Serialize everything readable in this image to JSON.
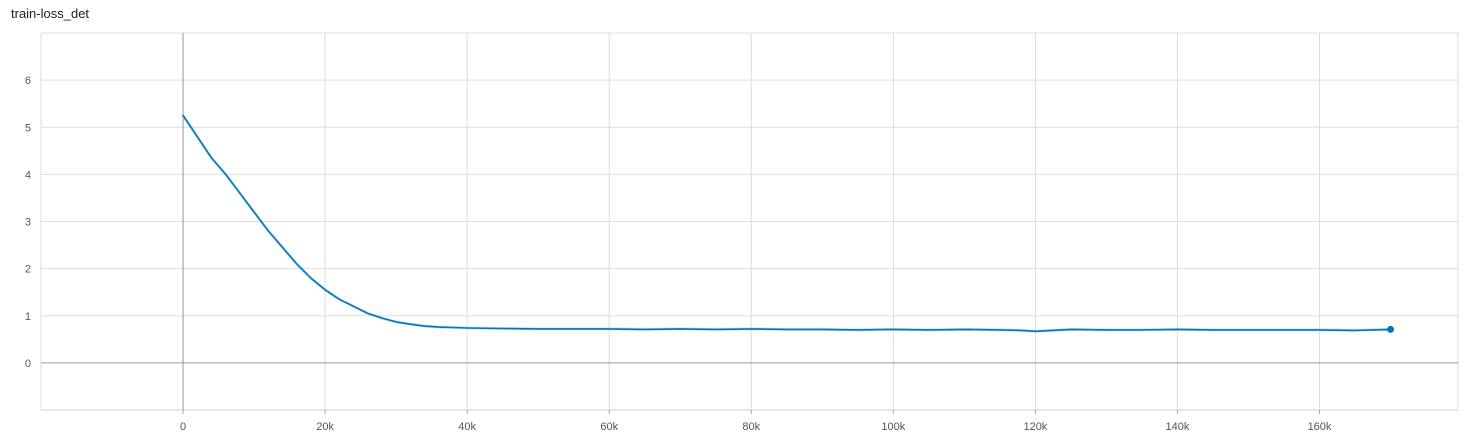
{
  "chart_data": {
    "type": "line",
    "title": "train-loss_det",
    "xlabel": "",
    "ylabel": "",
    "xlim": [
      -20000,
      179500
    ],
    "ylim": [
      -1,
      7
    ],
    "x_ticks": [
      0,
      20000,
      40000,
      60000,
      80000,
      100000,
      120000,
      140000,
      160000
    ],
    "x_tick_labels": [
      "0",
      "20k",
      "40k",
      "60k",
      "80k",
      "100k",
      "120k",
      "140k",
      "160k"
    ],
    "y_ticks": [
      0,
      1,
      2,
      3,
      4,
      5,
      6
    ],
    "y_tick_labels": [
      "0",
      "1",
      "2",
      "3",
      "4",
      "5",
      "6"
    ],
    "grid": true,
    "colors": {
      "line": "#0077bb",
      "raw": "#a9cfe6",
      "grid": "#dddddd",
      "zero_axis": "#999999"
    },
    "series": [
      {
        "x": [
          0,
          2000,
          4000,
          6000,
          8000,
          10000,
          12000,
          14000,
          16000,
          18000,
          20000,
          22000,
          24000,
          26000,
          28000,
          30000,
          32000,
          34000,
          36000,
          38000,
          40000,
          45000,
          50000,
          55000,
          60000,
          65000,
          70000,
          75000,
          80000,
          85000,
          90000,
          95000,
          100000,
          105000,
          110000,
          115000,
          118000,
          120000,
          125000,
          130000,
          135000,
          140000,
          145000,
          150000,
          155000,
          160000,
          165000,
          170000
        ],
        "y": [
          5.25,
          4.8,
          4.35,
          4.0,
          3.6,
          3.2,
          2.8,
          2.45,
          2.1,
          1.8,
          1.55,
          1.35,
          1.2,
          1.05,
          0.95,
          0.87,
          0.82,
          0.78,
          0.76,
          0.75,
          0.74,
          0.73,
          0.72,
          0.72,
          0.72,
          0.71,
          0.72,
          0.71,
          0.72,
          0.71,
          0.71,
          0.7,
          0.71,
          0.7,
          0.71,
          0.7,
          0.69,
          0.67,
          0.71,
          0.7,
          0.7,
          0.71,
          0.7,
          0.7,
          0.7,
          0.7,
          0.69,
          0.71
        ]
      }
    ]
  }
}
